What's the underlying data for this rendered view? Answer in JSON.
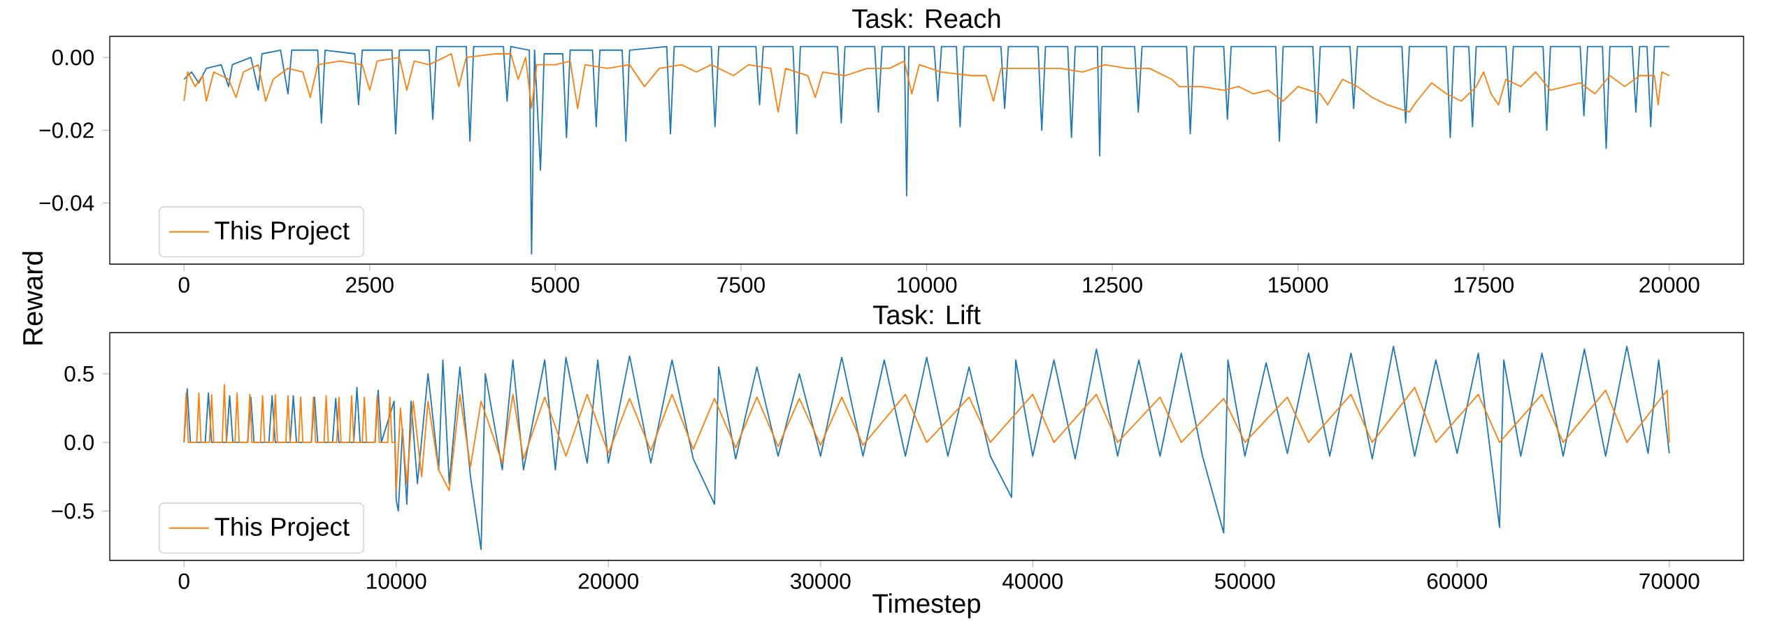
{
  "chart_data": [
    {
      "type": "line",
      "title": "Task: Reach",
      "ylabel": "Reward",
      "legend": "bottom left",
      "line_style": "solid",
      "xlim": [
        -1000,
        21000
      ],
      "ylim": [
        -0.0568,
        0.0058
      ],
      "xticks": [
        0,
        2500,
        5000,
        7500,
        10000,
        12500,
        15000,
        17500,
        20000
      ],
      "yticks": [
        {
          "value": -0.04,
          "label": "−0.04"
        },
        {
          "value": -0.02,
          "label": "−0.02"
        },
        {
          "value": 0,
          "label": "0.00"
        }
      ],
      "series": [
        {
          "color": "#1f77b4",
          "x": [
            0,
            100,
            200,
            300,
            500,
            600,
            650,
            900,
            1000,
            1050,
            1300,
            1400,
            1450,
            1800,
            1850,
            1900,
            2300,
            2350,
            2400,
            2800,
            2850,
            2900,
            3300,
            3350,
            3400,
            3800,
            3850,
            3900,
            4300,
            4350,
            4400,
            4650,
            4680,
            4720,
            4800,
            4850,
            5100,
            5150,
            5200,
            5500,
            5550,
            5600,
            5900,
            5950,
            6000,
            6500,
            6550,
            6600,
            7100,
            7150,
            7200,
            7700,
            7750,
            7800,
            8200,
            8250,
            8300,
            8800,
            8850,
            8900,
            9300,
            9350,
            9400,
            9700,
            9730,
            9760,
            10100,
            10150,
            10200,
            10400,
            10450,
            10500,
            11000,
            11050,
            11100,
            11500,
            11550,
            11600,
            11900,
            11950,
            12000,
            12300,
            12330,
            12360,
            12800,
            12850,
            12900,
            13500,
            13550,
            13600,
            14000,
            14050,
            14100,
            14700,
            14750,
            14800,
            15200,
            15250,
            15300,
            15700,
            15750,
            15800,
            16400,
            16450,
            16500,
            17000,
            17050,
            17100,
            17300,
            17350,
            17400,
            17800,
            17850,
            17900,
            18300,
            18350,
            18400,
            18800,
            18850,
            18900,
            19100,
            19150,
            19200,
            19500,
            19550,
            19600,
            19700,
            19750,
            19800,
            20000
          ],
          "values": [
            -0.006,
            -0.004,
            -0.007,
            -0.003,
            -0.002,
            -0.008,
            -0.002,
            0.0,
            -0.009,
            0.001,
            0.002,
            -0.01,
            0.002,
            0.002,
            -0.018,
            0.002,
            0.001,
            -0.013,
            0.002,
            0.002,
            -0.021,
            0.002,
            0.002,
            -0.017,
            0.003,
            0.003,
            -0.023,
            0.003,
            0.003,
            -0.012,
            0.003,
            0.002,
            -0.054,
            0.002,
            -0.031,
            0.001,
            0.001,
            -0.022,
            0.002,
            0.002,
            -0.019,
            0.002,
            0.002,
            -0.023,
            0.002,
            0.003,
            -0.021,
            0.003,
            0.003,
            -0.019,
            0.003,
            0.003,
            -0.013,
            0.003,
            0.003,
            -0.021,
            0.003,
            0.003,
            -0.018,
            0.003,
            0.003,
            -0.015,
            0.003,
            0.003,
            -0.038,
            0.003,
            0.003,
            -0.012,
            0.003,
            0.003,
            -0.019,
            0.003,
            0.003,
            -0.014,
            0.003,
            0.003,
            -0.02,
            0.003,
            0.003,
            -0.022,
            0.003,
            0.003,
            -0.027,
            0.003,
            0.003,
            -0.015,
            0.003,
            0.003,
            -0.021,
            0.003,
            0.003,
            -0.017,
            0.003,
            0.003,
            -0.023,
            0.003,
            0.003,
            -0.018,
            0.003,
            0.003,
            -0.014,
            0.003,
            0.003,
            -0.018,
            0.003,
            0.003,
            -0.022,
            0.003,
            0.003,
            -0.019,
            0.003,
            0.003,
            -0.015,
            0.003,
            0.003,
            -0.02,
            0.003,
            0.003,
            -0.016,
            0.003,
            0.003,
            -0.025,
            0.003,
            0.003,
            -0.015,
            0.003,
            0.003,
            -0.019,
            0.003,
            0.003
          ]
        },
        {
          "name": "This Project",
          "color": "#ff7f0e",
          "x": [
            0,
            50,
            150,
            250,
            300,
            400,
            600,
            700,
            800,
            1000,
            1100,
            1200,
            1400,
            1600,
            1700,
            1800,
            2100,
            2400,
            2500,
            2600,
            2900,
            3000,
            3100,
            3300,
            3600,
            3700,
            3800,
            4200,
            4400,
            4500,
            4600,
            4680,
            4750,
            5000,
            5200,
            5300,
            5400,
            5700,
            6000,
            6200,
            6400,
            6700,
            6900,
            7100,
            7400,
            7600,
            7900,
            8000,
            8100,
            8400,
            8500,
            8600,
            8900,
            9200,
            9500,
            9700,
            9800,
            9900,
            10200,
            10600,
            10800,
            10900,
            11000,
            11400,
            11800,
            12100,
            12400,
            12700,
            13000,
            13300,
            13400,
            13700,
            14000,
            14200,
            14400,
            14600,
            14800,
            15000,
            15300,
            15400,
            15600,
            15800,
            16000,
            16200,
            16500,
            16600,
            16800,
            17000,
            17200,
            17400,
            17500,
            17600,
            17700,
            17800,
            18000,
            18200,
            18400,
            18600,
            18800,
            19000,
            19200,
            19400,
            19600,
            19800,
            19850,
            19900,
            20000
          ],
          "values": [
            -0.012,
            -0.004,
            -0.008,
            -0.005,
            -0.012,
            -0.004,
            -0.006,
            -0.011,
            -0.004,
            -0.002,
            -0.012,
            -0.006,
            -0.003,
            -0.004,
            -0.011,
            -0.002,
            -0.001,
            -0.002,
            -0.009,
            -0.001,
            0.0,
            -0.009,
            -0.001,
            -0.002,
            0.001,
            -0.008,
            0.0,
            0.001,
            0.001,
            -0.006,
            0.0,
            -0.014,
            -0.002,
            -0.002,
            -0.001,
            -0.014,
            -0.002,
            -0.003,
            -0.002,
            -0.008,
            -0.003,
            -0.002,
            -0.004,
            -0.002,
            -0.005,
            -0.002,
            -0.003,
            -0.015,
            -0.003,
            -0.005,
            -0.011,
            -0.004,
            -0.005,
            -0.003,
            -0.003,
            -0.001,
            -0.01,
            -0.002,
            -0.004,
            -0.005,
            -0.005,
            -0.012,
            -0.003,
            -0.003,
            -0.003,
            -0.004,
            -0.002,
            -0.003,
            -0.003,
            -0.006,
            -0.008,
            -0.008,
            -0.009,
            -0.008,
            -0.01,
            -0.009,
            -0.012,
            -0.008,
            -0.01,
            -0.013,
            -0.006,
            -0.008,
            -0.011,
            -0.013,
            -0.015,
            -0.012,
            -0.007,
            -0.01,
            -0.012,
            -0.008,
            -0.004,
            -0.01,
            -0.013,
            -0.006,
            -0.008,
            -0.004,
            -0.009,
            -0.008,
            -0.007,
            -0.01,
            -0.005,
            -0.008,
            -0.005,
            -0.005,
            -0.013,
            -0.004,
            -0.005
          ]
        }
      ]
    },
    {
      "type": "line",
      "title": "Task: Lift",
      "xlabel": "Timestep",
      "legend": "bottom left",
      "line_style": "solid",
      "xlim": [
        -3500,
        73500
      ],
      "ylim": [
        -0.86,
        0.8
      ],
      "xticks": [
        0,
        10000,
        20000,
        30000,
        40000,
        50000,
        60000,
        70000
      ],
      "yticks": [
        {
          "value": -0.5,
          "label": "−0.5"
        },
        {
          "value": 0,
          "label": "0.0"
        },
        {
          "value": 0.5,
          "label": "0.5"
        }
      ],
      "series": [
        {
          "color": "#1f77b4",
          "x": [
            0,
            150,
            300,
            1000,
            1150,
            1300,
            2000,
            2150,
            2300,
            3000,
            3150,
            3300,
            4000,
            4150,
            4300,
            5000,
            5150,
            5300,
            6000,
            6150,
            6300,
            7000,
            7150,
            7300,
            8000,
            8150,
            8300,
            9000,
            9150,
            9300,
            9900,
            10000,
            10100,
            10300,
            10500,
            10700,
            11000,
            11500,
            12000,
            12200,
            12500,
            13000,
            13500,
            14000,
            14200,
            15000,
            15500,
            16000,
            17000,
            17500,
            18000,
            19000,
            19500,
            20000,
            21000,
            22000,
            23000,
            24000,
            25000,
            25200,
            26000,
            27000,
            28000,
            29000,
            30000,
            31000,
            32000,
            33000,
            34000,
            35000,
            36000,
            37000,
            38000,
            39000,
            39200,
            40000,
            41000,
            42000,
            43000,
            44000,
            45000,
            46000,
            47000,
            48000,
            49000,
            49200,
            50000,
            51000,
            52000,
            53000,
            54000,
            55000,
            56000,
            57000,
            58000,
            59000,
            60000,
            61000,
            62000,
            62200,
            63000,
            64000,
            65000,
            66000,
            67000,
            68000,
            69000,
            69500,
            70000
          ],
          "values": [
            0,
            0.39,
            0,
            0,
            0.36,
            0,
            0,
            0.34,
            0,
            0,
            0.33,
            0,
            0,
            0.34,
            0,
            0,
            0.34,
            0,
            0,
            0.33,
            0,
            0,
            0.32,
            0,
            0,
            0.4,
            0,
            0,
            0.38,
            0,
            0.3,
            -0.42,
            -0.5,
            0.1,
            -0.45,
            0.3,
            -0.3,
            0.5,
            -0.2,
            0.6,
            -0.3,
            0.55,
            -0.25,
            -0.78,
            0.5,
            -0.2,
            0.6,
            -0.2,
            0.6,
            -0.2,
            0.62,
            -0.15,
            0.6,
            -0.15,
            0.63,
            -0.15,
            0.6,
            -0.12,
            -0.45,
            0.55,
            -0.12,
            0.55,
            -0.1,
            0.5,
            -0.1,
            0.62,
            -0.1,
            0.6,
            -0.1,
            0.62,
            -0.1,
            0.55,
            -0.1,
            -0.4,
            0.6,
            -0.1,
            0.6,
            -0.12,
            0.68,
            -0.1,
            0.6,
            -0.1,
            0.65,
            -0.1,
            -0.66,
            0.6,
            -0.1,
            0.58,
            -0.08,
            0.65,
            -0.1,
            0.65,
            -0.12,
            0.7,
            -0.1,
            0.6,
            -0.08,
            0.65,
            -0.62,
            0.6,
            -0.1,
            0.65,
            -0.1,
            0.68,
            -0.1,
            0.7,
            -0.08,
            0.6,
            -0.08
          ]
        },
        {
          "name": "This Project",
          "color": "#ff7f0e",
          "x": [
            0,
            100,
            200,
            600,
            700,
            800,
            1200,
            1300,
            1400,
            1800,
            1900,
            2000,
            2400,
            2500,
            2600,
            3000,
            3100,
            3200,
            3600,
            3700,
            3800,
            4200,
            4300,
            4400,
            4800,
            4900,
            5000,
            5400,
            5500,
            5600,
            6000,
            6100,
            6200,
            6600,
            6700,
            6800,
            7200,
            7300,
            7400,
            7800,
            7900,
            8000,
            8400,
            8500,
            8600,
            9000,
            9100,
            9200,
            9600,
            9700,
            9800,
            9950,
            10000,
            10200,
            10500,
            10800,
            11200,
            11500,
            12000,
            12500,
            13000,
            13500,
            14000,
            15000,
            15500,
            16000,
            17000,
            18000,
            19000,
            20000,
            21000,
            22000,
            23000,
            24000,
            25000,
            26000,
            27000,
            28000,
            29000,
            30000,
            31000,
            32000,
            34000,
            35000,
            37000,
            38000,
            40000,
            41000,
            43000,
            44000,
            46000,
            47000,
            49000,
            50000,
            52000,
            53000,
            55000,
            56000,
            58000,
            59000,
            61000,
            62000,
            64000,
            65000,
            67000,
            68000,
            69900,
            70000
          ],
          "values": [
            0,
            0.36,
            0,
            0,
            0.36,
            0,
            0,
            0.35,
            0,
            0,
            0.42,
            0,
            0,
            0.36,
            0,
            0,
            0.35,
            0,
            0,
            0.34,
            0,
            0,
            0.35,
            0,
            0,
            0.34,
            0,
            0,
            0.33,
            0,
            0,
            0.33,
            0,
            0,
            0.34,
            0,
            0,
            0.33,
            0,
            0,
            0.34,
            0,
            0,
            0.33,
            0,
            0,
            0.34,
            0,
            0,
            0.33,
            0,
            0,
            -0.35,
            0.25,
            -0.3,
            0.3,
            -0.25,
            0.3,
            -0.2,
            -0.35,
            0.35,
            -0.18,
            0.3,
            -0.15,
            0.35,
            -0.12,
            0.33,
            -0.1,
            0.35,
            -0.08,
            0.32,
            -0.06,
            0.35,
            -0.05,
            0.32,
            -0.04,
            0.33,
            -0.03,
            0.32,
            -0.02,
            0.33,
            -0.02,
            0.35,
            0,
            0.33,
            0,
            0.35,
            0,
            0.35,
            0,
            0.33,
            0,
            0.32,
            0,
            0.33,
            0,
            0.35,
            0,
            0.4,
            0,
            0.35,
            0,
            0.35,
            0,
            0.38,
            0,
            0.38,
            0
          ]
        }
      ]
    }
  ]
}
